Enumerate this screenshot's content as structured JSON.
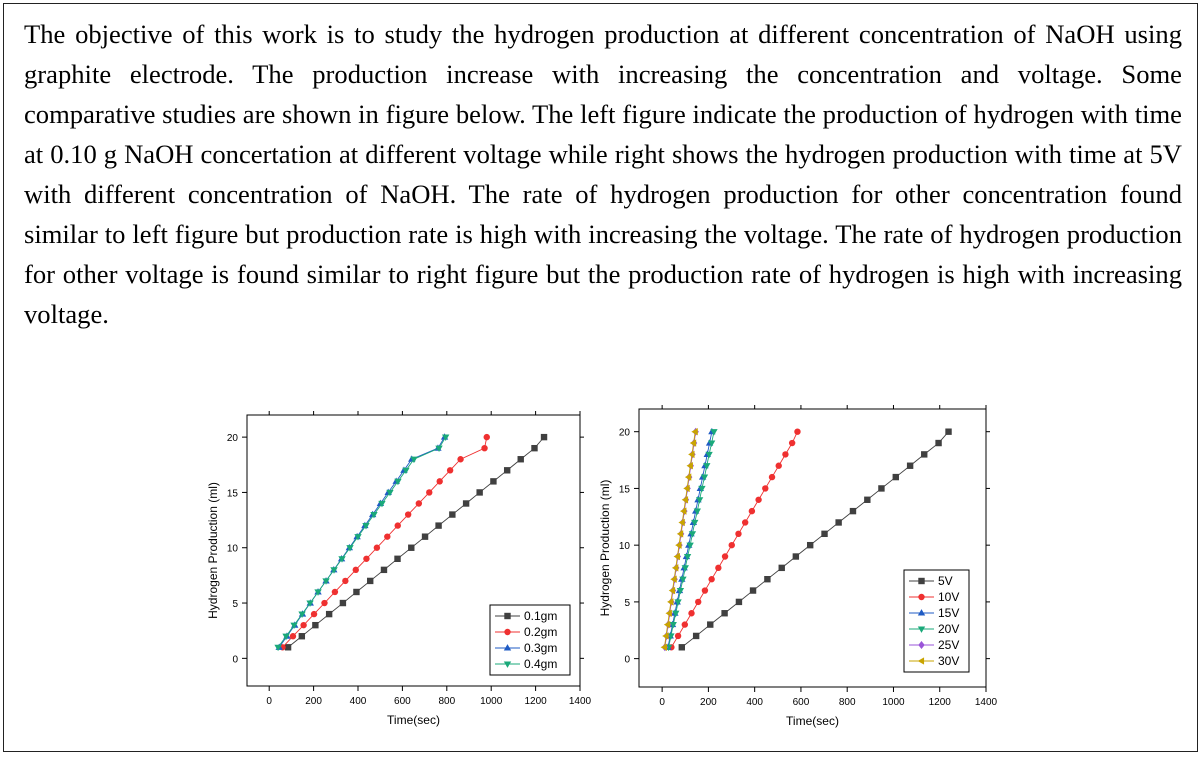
{
  "paragraph": "The objective of this work is to study the hydrogen production at different concentration of NaOH using graphite electrode. The production increase with increasing the concentration and voltage. Some comparative studies are shown in figure below. The left figure indicate the production of hydrogen with time at 0.10 g NaOH concertation at different voltage while right shows the hydrogen production with time at 5V with different concentration of NaOH. The rate of hydrogen production for other concentration found similar to left figure but production rate is high with increasing the voltage. The rate of hydrogen production for other voltage is found similar to right figure but the production rate of hydrogen is high with increasing voltage.",
  "chart_data": [
    {
      "type": "line",
      "title": "",
      "xlabel": "Time(sec)",
      "ylabel": "Hydrogen Production (ml)",
      "xlim": [
        -100,
        1400
      ],
      "ylim": [
        -2.5,
        22
      ],
      "xticks": [
        0,
        200,
        400,
        600,
        800,
        1000,
        1200,
        1400
      ],
      "yticks": [
        0,
        5,
        10,
        15,
        20
      ],
      "grid": false,
      "legend_position": "bottom-right",
      "series": [
        {
          "name": "0.1gm",
          "color": "#404040",
          "marker": "square",
          "x": [
            85,
            147,
            208,
            270,
            332,
            393,
            455,
            517,
            578,
            640,
            702,
            763,
            825,
            887,
            948,
            1010,
            1072,
            1133,
            1195,
            1238
          ],
          "y": [
            1,
            2,
            3,
            4,
            5,
            6,
            7,
            8,
            9,
            10,
            11,
            12,
            13,
            14,
            15,
            16,
            17,
            18,
            19,
            20
          ]
        },
        {
          "name": "0.2gm",
          "color": "#ef3030",
          "marker": "circle",
          "x": [
            60,
            107,
            155,
            202,
            249,
            296,
            343,
            390,
            438,
            485,
            532,
            579,
            626,
            674,
            721,
            768,
            815,
            862,
            970,
            980
          ],
          "y": [
            1,
            2,
            3,
            4,
            5,
            6,
            7,
            8,
            9,
            10,
            11,
            12,
            13,
            14,
            15,
            16,
            17,
            18,
            19,
            20
          ]
        },
        {
          "name": "0.3gm",
          "color": "#1f5bc4",
          "marker": "triangle-up",
          "x": [
            45,
            80,
            115,
            150,
            185,
            220,
            256,
            291,
            326,
            361,
            396,
            431,
            466,
            501,
            536,
            572,
            607,
            642,
            760,
            790
          ],
          "y": [
            1,
            2,
            3,
            4,
            5,
            6,
            7,
            8,
            9,
            10,
            11,
            12,
            13,
            14,
            15,
            16,
            17,
            18,
            19,
            20
          ]
        },
        {
          "name": "0.4gm",
          "color": "#1aa97a",
          "marker": "triangle-down",
          "x": [
            40,
            76,
            112,
            148,
            184,
            220,
            256,
            292,
            328,
            364,
            400,
            436,
            472,
            508,
            544,
            580,
            616,
            652,
            765,
            795
          ],
          "y": [
            1,
            2,
            3,
            4,
            5,
            6,
            7,
            8,
            9,
            10,
            11,
            12,
            13,
            14,
            15,
            16,
            17,
            18,
            19,
            20
          ]
        }
      ]
    },
    {
      "type": "line",
      "title": "",
      "xlabel": "Time(sec)",
      "ylabel": "Hydrogen Production (ml)",
      "xlim": [
        -100,
        1400
      ],
      "ylim": [
        -2.5,
        22
      ],
      "xticks": [
        0,
        200,
        400,
        600,
        800,
        1000,
        1200,
        1400
      ],
      "yticks": [
        0,
        5,
        10,
        15,
        20
      ],
      "grid": false,
      "legend_position": "bottom-right",
      "series": [
        {
          "name": "5V",
          "color": "#404040",
          "marker": "square",
          "x": [
            85,
            147,
            208,
            270,
            332,
            393,
            455,
            517,
            578,
            640,
            702,
            763,
            825,
            887,
            948,
            1010,
            1072,
            1133,
            1195,
            1238
          ],
          "y": [
            1,
            2,
            3,
            4,
            5,
            6,
            7,
            8,
            9,
            10,
            11,
            12,
            13,
            14,
            15,
            16,
            17,
            18,
            19,
            20
          ]
        },
        {
          "name": "10V",
          "color": "#ef3030",
          "marker": "circle",
          "x": [
            40,
            69,
            98,
            127,
            156,
            185,
            214,
            243,
            272,
            301,
            330,
            359,
            388,
            417,
            446,
            475,
            504,
            533,
            562,
            585
          ],
          "y": [
            1,
            2,
            3,
            4,
            5,
            6,
            7,
            8,
            9,
            10,
            11,
            12,
            13,
            14,
            15,
            16,
            17,
            18,
            19,
            20
          ]
        },
        {
          "name": "15V",
          "color": "#1f5bc4",
          "marker": "triangle-up",
          "x": [
            25,
            35,
            45,
            55,
            65,
            75,
            85,
            95,
            105,
            115,
            125,
            135,
            145,
            155,
            165,
            175,
            185,
            195,
            205,
            215
          ],
          "y": [
            1,
            2,
            3,
            4,
            5,
            6,
            7,
            8,
            9,
            10,
            11,
            12,
            13,
            14,
            15,
            16,
            17,
            18,
            19,
            20
          ]
        },
        {
          "name": "20V",
          "color": "#1aa97a",
          "marker": "triangle-down",
          "x": [
            28,
            38,
            48,
            59,
            69,
            79,
            90,
            100,
            110,
            121,
            131,
            141,
            152,
            162,
            172,
            183,
            193,
            203,
            214,
            224
          ],
          "y": [
            1,
            2,
            3,
            4,
            5,
            6,
            7,
            8,
            9,
            10,
            11,
            12,
            13,
            14,
            15,
            16,
            17,
            18,
            19,
            20
          ]
        },
        {
          "name": "25V",
          "color": "#9a55d8",
          "marker": "diamond",
          "x": [
            12,
            19,
            26,
            33,
            40,
            47,
            54,
            61,
            68,
            75,
            82,
            89,
            96,
            103,
            110,
            117,
            124,
            131,
            138,
            145
          ],
          "y": [
            1,
            2,
            3,
            4,
            5,
            6,
            7,
            8,
            9,
            10,
            11,
            12,
            13,
            14,
            15,
            16,
            17,
            18,
            19,
            20
          ]
        },
        {
          "name": "30V",
          "color": "#c9a400",
          "marker": "triangle-left",
          "x": [
            10,
            17,
            24,
            31,
            38,
            45,
            52,
            59,
            66,
            73,
            80,
            87,
            94,
            101,
            108,
            115,
            122,
            129,
            136,
            143
          ],
          "y": [
            1,
            2,
            3,
            4,
            5,
            6,
            7,
            8,
            9,
            10,
            11,
            12,
            13,
            14,
            15,
            16,
            17,
            18,
            19,
            20
          ]
        }
      ]
    }
  ]
}
